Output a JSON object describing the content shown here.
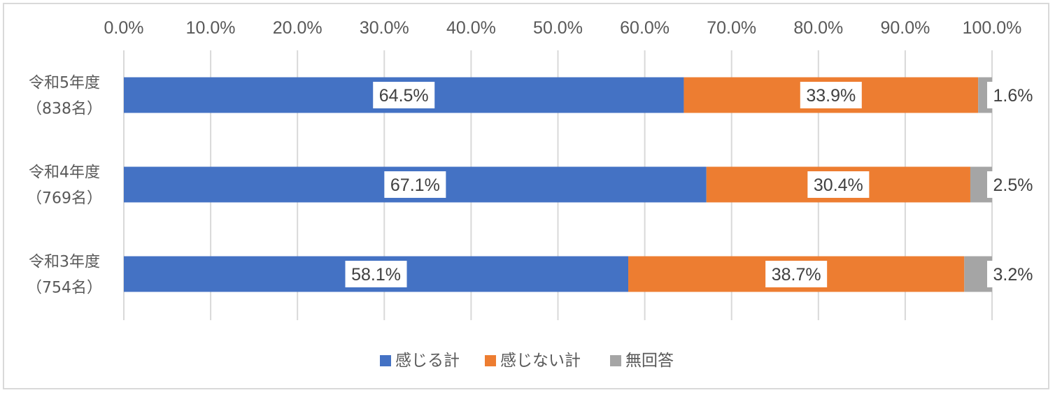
{
  "chart_data": {
    "type": "bar",
    "orientation": "horizontal",
    "stacked": true,
    "categories": [
      [
        "令和5年度",
        "（838名）"
      ],
      [
        "令和4年度",
        "（769名）"
      ],
      [
        "令和3年度",
        "（754名）"
      ]
    ],
    "series": [
      {
        "name": "感じる計",
        "values": [
          64.5,
          67.1,
          58.1
        ],
        "labels": [
          "64.5%",
          "67.1%",
          "58.1%"
        ],
        "color": "#4472c4"
      },
      {
        "name": "感じない計",
        "values": [
          33.9,
          30.4,
          38.7
        ],
        "labels": [
          "33.9%",
          "30.4%",
          "38.7%"
        ],
        "color": "#ed7d31"
      },
      {
        "name": "無回答",
        "values": [
          1.6,
          2.5,
          3.2
        ],
        "labels": [
          "1.6%",
          "2.5%",
          "3.2%"
        ],
        "color": "#a5a5a5"
      }
    ],
    "x_ticks": [
      "0.0%",
      "10.0%",
      "20.0%",
      "30.0%",
      "40.0%",
      "50.0%",
      "60.0%",
      "70.0%",
      "80.0%",
      "90.0%",
      "100.0%"
    ],
    "xlim": [
      0,
      100
    ],
    "x_axis_position": "top",
    "grid": true,
    "legend": "bottom-center",
    "title": "",
    "xlabel": "",
    "ylabel": ""
  }
}
